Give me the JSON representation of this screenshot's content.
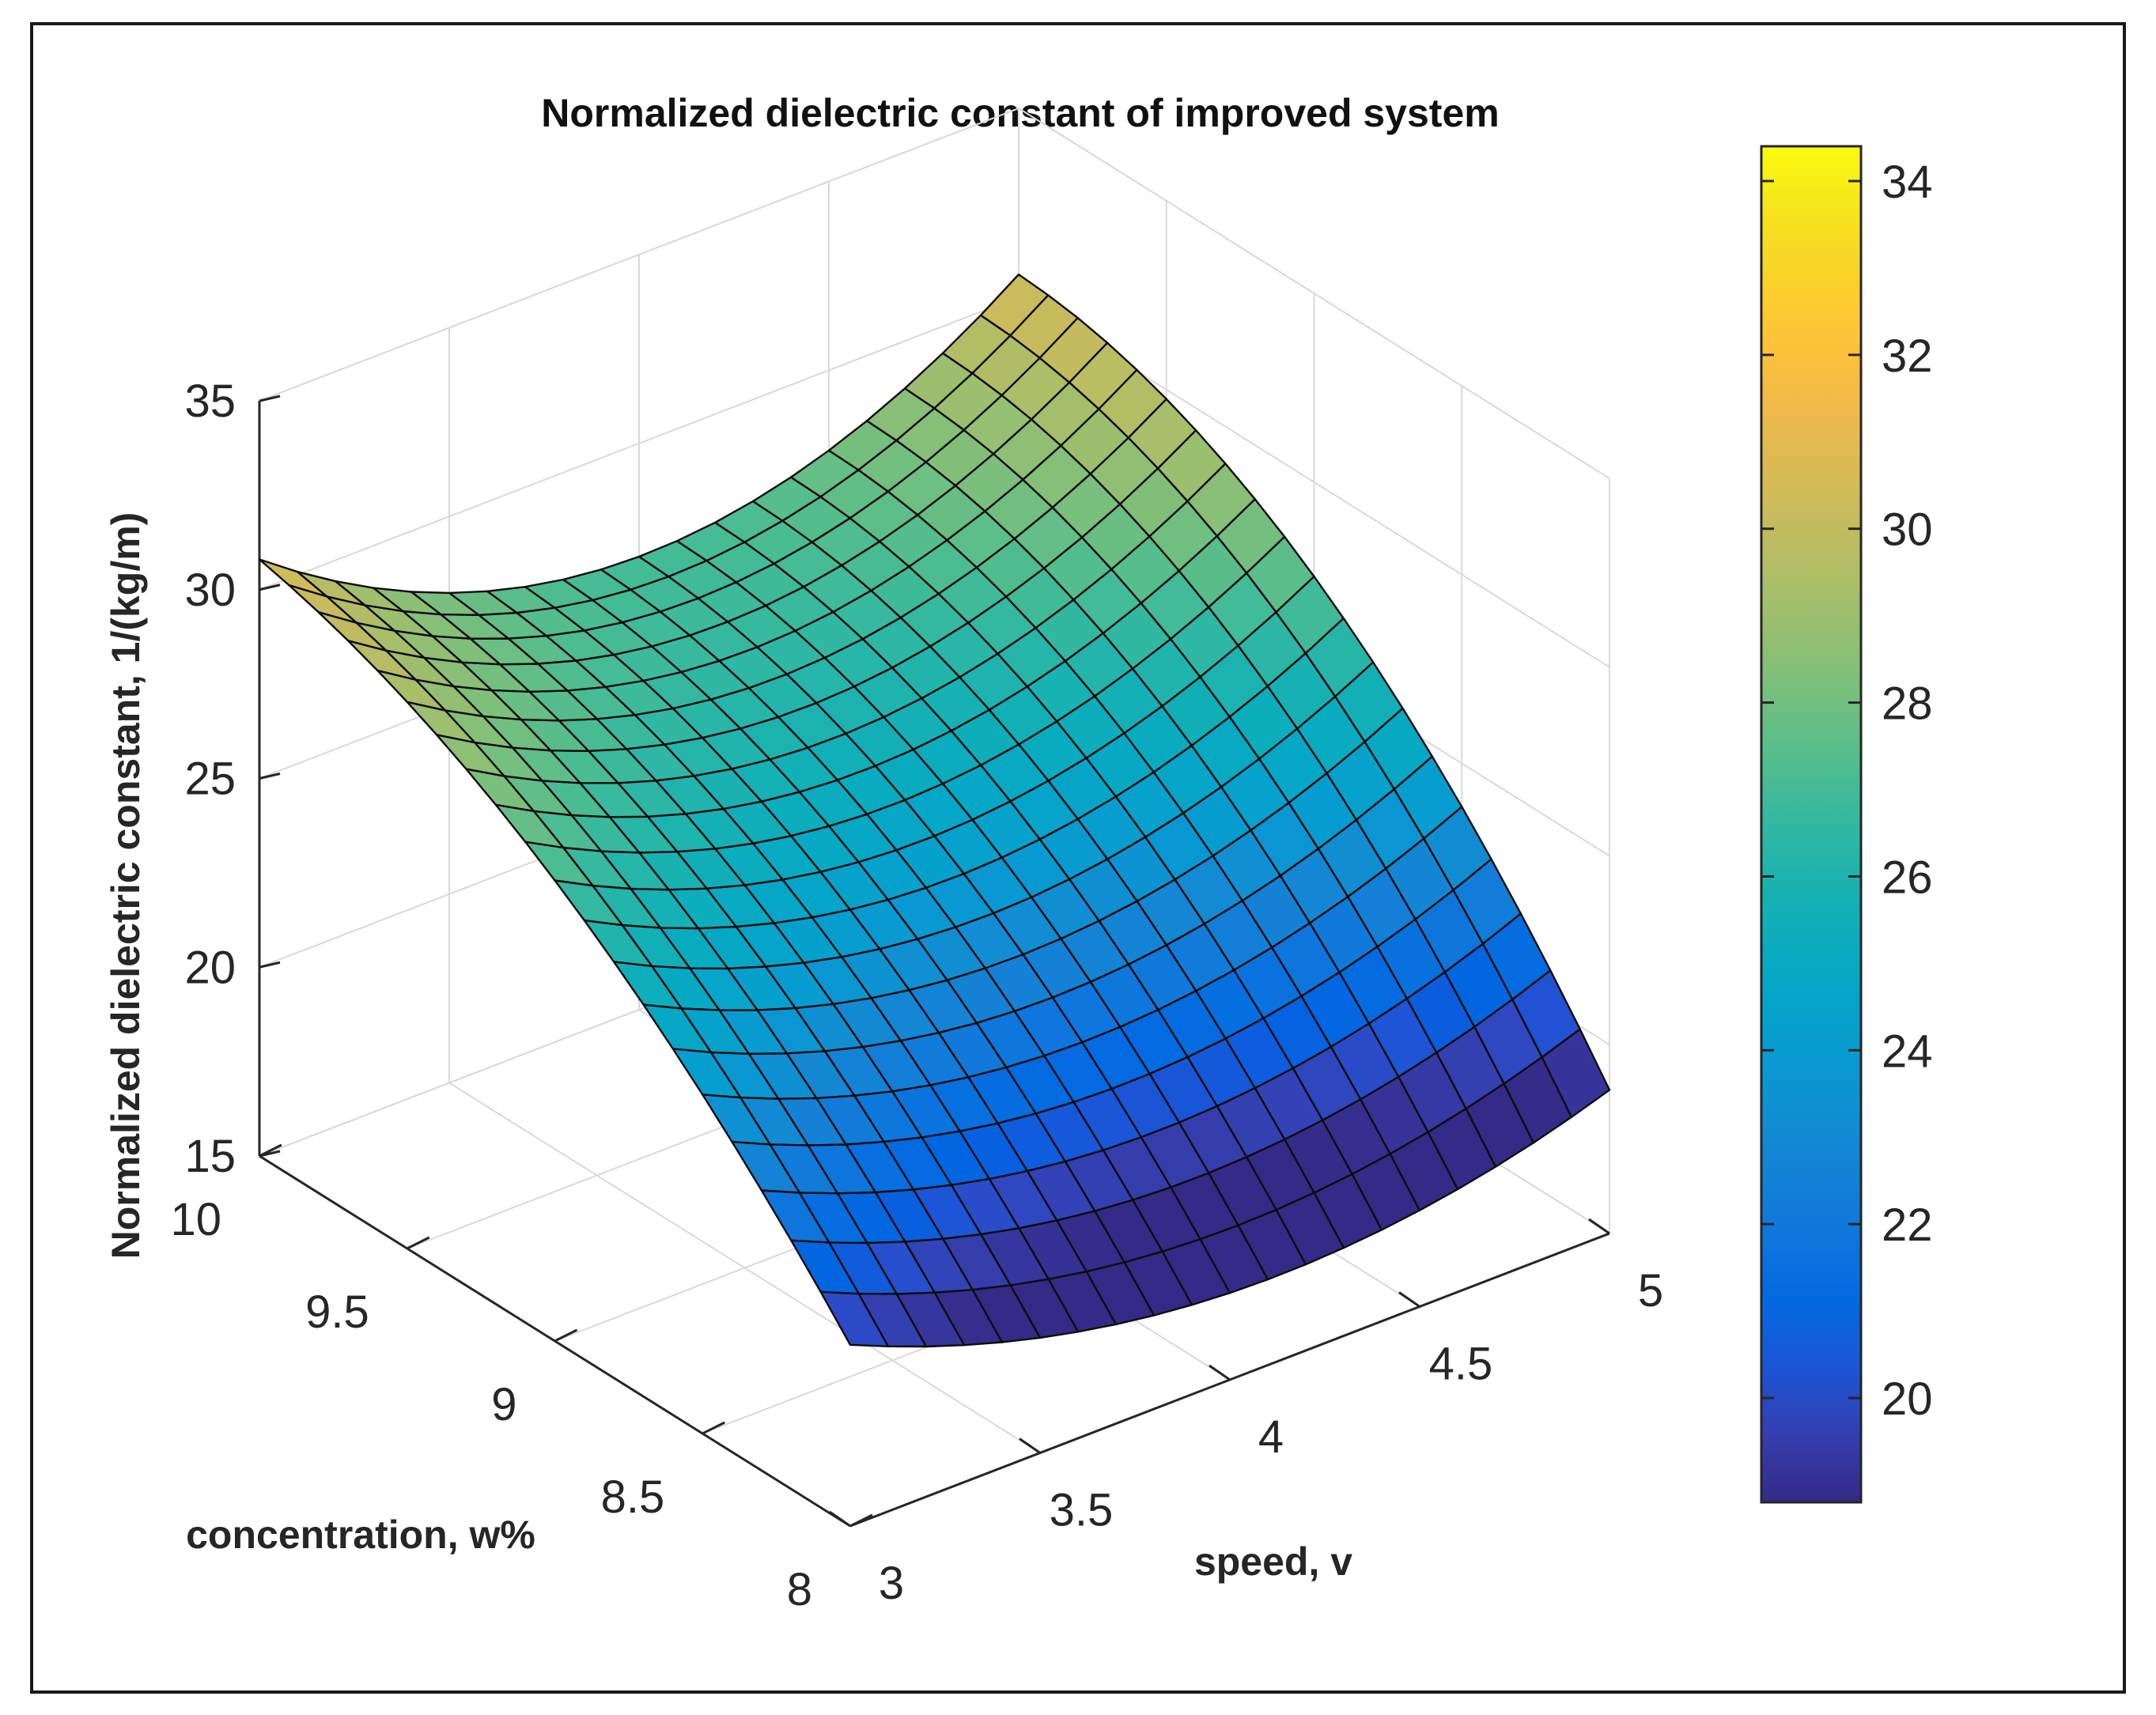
{
  "chart_data": {
    "type": "surface3d",
    "title": "Normalized dielectric constant of improved system",
    "xlabel": "speed, v",
    "ylabel": "concentration, w%",
    "zlabel": "Normalized dielectric constant, 1/(kg/m)",
    "xlim": [
      3,
      5
    ],
    "ylim": [
      8,
      10
    ],
    "zlim": [
      15,
      35
    ],
    "xticks": [
      "3",
      "3.5",
      "4",
      "4.5",
      "5"
    ],
    "yticks": [
      "8",
      "8.5",
      "9",
      "9.5",
      "10"
    ],
    "zticks": [
      "15",
      "20",
      "25",
      "30",
      "35"
    ],
    "grid": true,
    "colormap": "parula",
    "colorbar": {
      "range": [
        18.8,
        34.4
      ],
      "ticks": [
        "20",
        "22",
        "24",
        "26",
        "28",
        "30",
        "32",
        "34"
      ]
    },
    "mesh": {
      "x_steps": 20,
      "y_steps": 20
    },
    "surface_samples": [
      {
        "x": 3,
        "y": 8,
        "z": 19.8
      },
      {
        "x": 3,
        "y": 9,
        "z": 27.2
      },
      {
        "x": 3,
        "y": 10,
        "z": 30.8
      },
      {
        "x": 4,
        "y": 8,
        "z": 17.3
      },
      {
        "x": 4,
        "y": 9,
        "z": 24.5
      },
      {
        "x": 4,
        "y": 10,
        "z": 27.0
      },
      {
        "x": 5,
        "y": 8,
        "z": 18.8
      },
      {
        "x": 5,
        "y": 9,
        "z": 27.5
      },
      {
        "x": 5,
        "y": 10,
        "z": 30.6
      }
    ]
  }
}
